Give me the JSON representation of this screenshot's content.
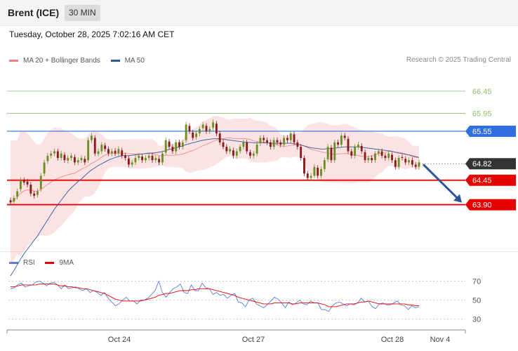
{
  "header": {
    "instrument": "Brent (ICE)",
    "timeframe": "30 MIN"
  },
  "timestamp": "Tuesday, October 28, 2025 7:02:16 AM CET",
  "legend": {
    "bollinger_label": "MA 20 + Bollinger Bands",
    "ma50_label": "MA 50"
  },
  "credit": "Research © 2025 Trading Central",
  "rsi_legend": {
    "rsi_label": "RSI",
    "ma9_label": "9MA"
  },
  "colors": {
    "resistance": "#8dc26a",
    "pivot": "#2f6fe0",
    "support": "#e60000",
    "current": "#333333",
    "bollinger": "#f08080",
    "ma50": "#2d5a9e",
    "rsi": "#5b7fd6",
    "rsi_ma": "#e60000",
    "candle_up": "#6b8e23",
    "candle_down": "#8b1a1a",
    "arrow": "#2b5597"
  },
  "chart_data": [
    {
      "type": "candlestick",
      "title": "Brent (ICE) 30 MIN",
      "ylim": [
        62.9,
        67.0
      ],
      "x_ticks": [
        "Oct 24",
        "Oct 27",
        "Oct 28",
        "Nov 4"
      ],
      "levels": [
        {
          "value": 66.45,
          "label": "66.45",
          "kind": "resistance"
        },
        {
          "value": 65.95,
          "label": "65.95",
          "kind": "resistance"
        },
        {
          "value": 65.55,
          "label": "65.55",
          "kind": "pivot"
        },
        {
          "value": 64.82,
          "label": "64.82",
          "kind": "current"
        },
        {
          "value": 64.45,
          "label": "64.45",
          "kind": "support"
        },
        {
          "value": 63.9,
          "label": "63.90",
          "kind": "support"
        }
      ],
      "forecast": {
        "from": 64.82,
        "to": 63.9,
        "direction": "down"
      },
      "closes": [
        63.95,
        64.05,
        64.2,
        64.45,
        64.4,
        64.35,
        64.15,
        64.1,
        64.2,
        64.55,
        64.85,
        65.0,
        65.05,
        65.1,
        64.95,
        65.05,
        64.9,
        64.95,
        65.0,
        64.85,
        64.9,
        64.95,
        64.85,
        65.35,
        65.45,
        65.05,
        65.1,
        65.25,
        65.15,
        65.05,
        65.1,
        65.05,
        65.15,
        65.0,
        64.95,
        64.8,
        64.85,
        64.95,
        65.0,
        64.9,
        64.95,
        65.0,
        64.9,
        64.95,
        64.85,
        65.05,
        65.35,
        65.2,
        65.1,
        65.3,
        65.2,
        65.3,
        65.7,
        65.55,
        65.4,
        65.5,
        65.6,
        65.7,
        65.55,
        65.6,
        65.75,
        65.5,
        65.3,
        65.2,
        65.1,
        65.15,
        65.0,
        65.1,
        65.2,
        65.3,
        65.1,
        65.0,
        65.05,
        65.25,
        65.4,
        65.35,
        65.3,
        65.2,
        65.35,
        65.3,
        65.25,
        65.4,
        65.35,
        65.5,
        65.3,
        65.2,
        64.95,
        64.6,
        64.5,
        64.55,
        64.75,
        64.55,
        64.7,
        64.9,
        65.2,
        64.9,
        65.3,
        65.25,
        65.45,
        65.4,
        65.1,
        65.0,
        65.2,
        65.25,
        65.1,
        64.9,
        64.95,
        64.9,
        65.05,
        65.1,
        65.0,
        64.95,
        65.05,
        64.9,
        64.75,
        64.95,
        64.95,
        64.85,
        64.9,
        64.8,
        64.75,
        64.85
      ],
      "opens_offset": [
        0.05,
        -0.08,
        -0.12,
        -0.2,
        0.05,
        0.07,
        0.2,
        0.05,
        -0.08,
        -0.3,
        -0.25,
        -0.12,
        -0.05,
        -0.05,
        0.15,
        -0.1,
        0.12,
        -0.06,
        -0.05,
        0.12,
        -0.05,
        -0.05,
        0.08,
        -0.45,
        -0.1,
        0.35,
        -0.06,
        -0.15,
        0.08,
        0.1,
        -0.05,
        0.06,
        -0.1,
        0.12,
        0.06,
        0.14,
        -0.05,
        -0.1,
        -0.05,
        0.08,
        -0.05,
        -0.05,
        0.1,
        -0.05,
        0.08,
        -0.2,
        -0.28,
        0.12,
        0.1,
        -0.2,
        0.1,
        -0.1,
        -0.35,
        0.12,
        0.12,
        -0.08,
        -0.1,
        -0.08,
        0.12,
        -0.05,
        -0.12,
        0.22,
        0.2,
        0.1,
        0.1,
        -0.05,
        0.12,
        -0.1,
        -0.1,
        -0.1,
        0.2,
        0.08,
        -0.05,
        -0.2,
        -0.12,
        0.05,
        0.05,
        0.1,
        -0.15,
        0.05,
        0.05,
        -0.15,
        0.05,
        -0.15,
        0.18,
        0.1,
        0.25,
        0.35,
        0.1,
        -0.05,
        -0.2,
        0.18,
        -0.15,
        -0.2,
        -0.28,
        0.28,
        -0.4,
        0.05,
        -0.2,
        0.05,
        0.28,
        0.1,
        -0.2,
        -0.05,
        0.12,
        0.18,
        -0.05,
        0.05,
        -0.15,
        -0.05,
        0.1,
        0.05,
        -0.1,
        0.12,
        0.15,
        -0.2,
        0.02,
        0.08,
        -0.05,
        0.1,
        0.05,
        -0.1
      ],
      "ma50": [
        62.3,
        62.42,
        62.55,
        62.68,
        62.8,
        62.9,
        63.0,
        63.1,
        63.2,
        63.32,
        63.44,
        63.56,
        63.68,
        63.8,
        63.9,
        64.0,
        64.1,
        64.2,
        64.28,
        64.35,
        64.42,
        64.48,
        64.55,
        64.62,
        64.68,
        64.73,
        64.78,
        64.82,
        64.86,
        64.9,
        64.93,
        64.96,
        64.98,
        65.0,
        65.0,
        65.0,
        65.01,
        65.02,
        65.03,
        65.04,
        65.05,
        65.06,
        65.06,
        65.07,
        65.08,
        65.09,
        65.12,
        65.14,
        65.16,
        65.18,
        65.2,
        65.22,
        65.25,
        65.27,
        65.29,
        65.31,
        65.33,
        65.35,
        65.36,
        65.37,
        65.38,
        65.38,
        65.38,
        65.37,
        65.36,
        65.35,
        65.34,
        65.33,
        65.32,
        65.31,
        65.3,
        65.3,
        65.29,
        65.29,
        65.29,
        65.29,
        65.29,
        65.28,
        65.28,
        65.28,
        65.28,
        65.28,
        65.28,
        65.28,
        65.27,
        65.26,
        65.24,
        65.22,
        65.2,
        65.18,
        65.17,
        65.16,
        65.15,
        65.15,
        65.16,
        65.16,
        65.17,
        65.18,
        65.19,
        65.2,
        65.2,
        65.2,
        65.2,
        65.2,
        65.19,
        65.18,
        65.17,
        65.16,
        65.15,
        65.14,
        65.13,
        65.12,
        65.11,
        65.1,
        65.08,
        65.06,
        65.05,
        65.03,
        65.02,
        65.0,
        64.98,
        64.96
      ]
    },
    {
      "type": "line",
      "title": "RSI",
      "ylim": [
        20,
        80
      ],
      "y_ticks": [
        70,
        50,
        30
      ],
      "series": [
        {
          "name": "RSI",
          "values": [
            62,
            63,
            66,
            68,
            64,
            65,
            66,
            69,
            70,
            68,
            65,
            68,
            69,
            66,
            62,
            66,
            62,
            63,
            64,
            62,
            60,
            62,
            58,
            60,
            58,
            55,
            58,
            52,
            48,
            44,
            46,
            50,
            53,
            49,
            49,
            46,
            50,
            50,
            52,
            56,
            60,
            70,
            58,
            53,
            58,
            62,
            64,
            67,
            58,
            57,
            66,
            60,
            60,
            68,
            63,
            62,
            56,
            58,
            55,
            56,
            52,
            55,
            57,
            48,
            47,
            43,
            50,
            52,
            46,
            44,
            42,
            45,
            49,
            53,
            51,
            47,
            42,
            48,
            45,
            47,
            50,
            46,
            45,
            49,
            47,
            47,
            40,
            40,
            38,
            44,
            47,
            48,
            46,
            44,
            46,
            45,
            47,
            52,
            48,
            49,
            43,
            41,
            46,
            47,
            45,
            45,
            47,
            49,
            45,
            44,
            40,
            44,
            42,
            43
          ]
        },
        {
          "name": "9MA",
          "values": [
            64,
            64,
            65,
            66,
            66,
            66,
            66,
            66,
            67,
            67,
            67,
            67,
            67,
            66,
            65,
            65,
            64,
            64,
            63,
            63,
            62,
            62,
            61,
            60,
            59,
            58,
            57,
            55,
            53,
            51,
            50,
            49,
            49,
            49,
            49,
            49,
            49,
            50,
            51,
            52,
            53,
            55,
            56,
            57,
            57,
            58,
            59,
            60,
            60,
            60,
            61,
            61,
            62,
            62,
            62,
            62,
            61,
            60,
            59,
            58,
            57,
            56,
            55,
            53,
            52,
            51,
            50,
            49,
            48,
            47,
            46,
            46,
            46,
            47,
            47,
            47,
            47,
            47,
            46,
            46,
            47,
            47,
            47,
            47,
            47,
            47,
            46,
            45,
            43,
            43,
            43,
            44,
            45,
            46,
            46,
            46,
            47,
            48,
            48,
            49,
            48,
            47,
            46,
            46,
            46,
            46,
            46,
            46,
            46,
            46,
            45,
            45,
            44,
            44
          ]
        }
      ]
    }
  ]
}
